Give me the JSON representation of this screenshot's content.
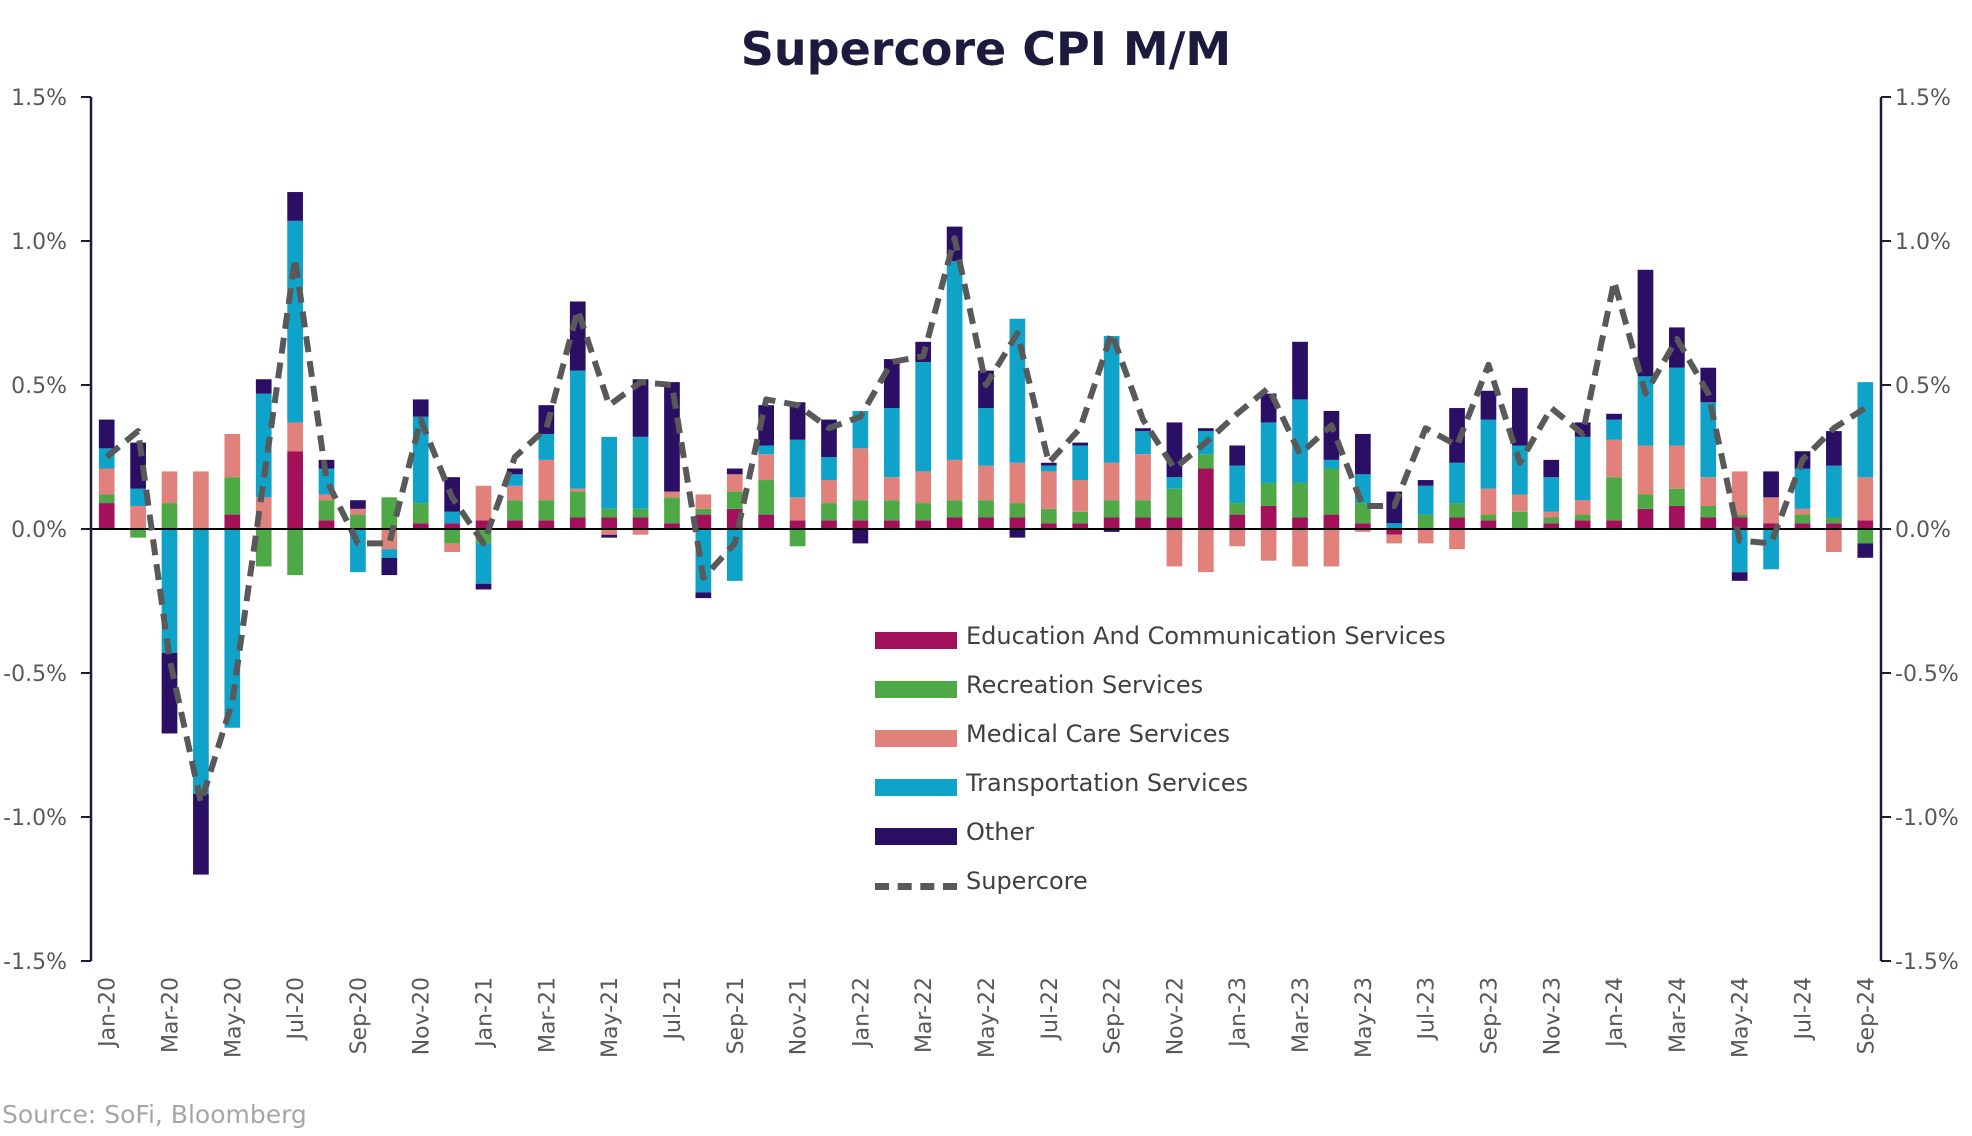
{
  "source_note": "Source: SoFi, Bloomberg",
  "chart_data": {
    "type": "bar",
    "stacked": true,
    "title": "Supercore CPI M/M",
    "ylim": [
      -1.5,
      1.5
    ],
    "y_ticks": [
      1.5,
      1.0,
      0.5,
      0.0,
      -0.5,
      -1.0,
      -1.5
    ],
    "y_tick_labels": [
      "1.5%",
      "1.0%",
      "0.5%",
      "0.0%",
      "-0.5%",
      "-1.0%",
      "-1.5%"
    ],
    "y_axis_right_mirror": true,
    "grid": false,
    "legend_position": "center-right",
    "x_tick_labels": [
      "Jan-20",
      "Mar-20",
      "May-20",
      "Jul-20",
      "Sep-20",
      "Nov-20",
      "Jan-21",
      "Mar-21",
      "May-21",
      "Jul-21",
      "Sep-21",
      "Nov-21",
      "Jan-22",
      "Mar-22",
      "May-22",
      "Jul-22",
      "Sep-22",
      "Nov-22",
      "Jan-23",
      "Mar-23",
      "May-23",
      "Jul-23",
      "Sep-23",
      "Nov-23",
      "Jan-24",
      "Mar-24",
      "May-24",
      "Jul-24",
      "Sep-24"
    ],
    "categories": [
      "Jan-20",
      "Feb-20",
      "Mar-20",
      "Apr-20",
      "May-20",
      "Jun-20",
      "Jul-20",
      "Aug-20",
      "Sep-20",
      "Oct-20",
      "Nov-20",
      "Dec-20",
      "Jan-21",
      "Feb-21",
      "Mar-21",
      "Apr-21",
      "May-21",
      "Jun-21",
      "Jul-21",
      "Aug-21",
      "Sep-21",
      "Oct-21",
      "Nov-21",
      "Dec-21",
      "Jan-22",
      "Feb-22",
      "Mar-22",
      "Apr-22",
      "May-22",
      "Jun-22",
      "Jul-22",
      "Aug-22",
      "Sep-22",
      "Oct-22",
      "Nov-22",
      "Dec-22",
      "Jan-23",
      "Feb-23",
      "Mar-23",
      "Apr-23",
      "May-23",
      "Jun-23",
      "Jul-23",
      "Aug-23",
      "Sep-23",
      "Oct-23",
      "Nov-23",
      "Dec-23",
      "Jan-24",
      "Feb-24",
      "Mar-24",
      "Apr-24",
      "May-24",
      "Jun-24",
      "Jul-24",
      "Aug-24",
      "Sep-24"
    ],
    "series": [
      {
        "name": "Education And Communication Services",
        "color": "#a3115b",
        "values": [
          0.09,
          0.0,
          0.0,
          0.0,
          0.05,
          0.0,
          0.27,
          0.03,
          0.0,
          0.0,
          0.02,
          0.02,
          0.03,
          0.03,
          0.03,
          0.04,
          0.04,
          0.04,
          0.02,
          0.05,
          0.07,
          0.05,
          0.03,
          0.03,
          0.03,
          0.03,
          0.03,
          0.04,
          0.04,
          0.04,
          0.02,
          0.02,
          0.04,
          0.04,
          0.04,
          0.21,
          0.05,
          0.08,
          0.04,
          0.05,
          0.02,
          -0.02,
          0.0,
          0.04,
          0.03,
          0.0,
          0.02,
          0.03,
          0.03,
          0.07,
          0.08,
          0.04,
          0.04,
          0.02,
          0.02,
          0.02,
          0.03
        ]
      },
      {
        "name": "Recreation Services",
        "color": "#4fa846",
        "values": [
          0.03,
          -0.03,
          0.09,
          0.0,
          0.13,
          -0.13,
          -0.16,
          0.07,
          0.05,
          0.11,
          0.07,
          -0.05,
          -0.05,
          0.07,
          0.07,
          0.09,
          0.03,
          0.03,
          0.09,
          0.02,
          0.06,
          0.12,
          -0.06,
          0.06,
          0.07,
          0.07,
          0.06,
          0.06,
          0.06,
          0.05,
          0.05,
          0.04,
          0.06,
          0.06,
          0.1,
          0.05,
          0.04,
          0.08,
          0.12,
          0.16,
          0.07,
          0.0,
          0.05,
          0.05,
          0.02,
          0.06,
          0.02,
          0.02,
          0.15,
          0.05,
          0.06,
          0.04,
          0.01,
          0.0,
          0.03,
          0.02,
          -0.05
        ]
      },
      {
        "name": "Medical Care Services",
        "color": "#e0827b",
        "values": [
          0.09,
          0.08,
          0.11,
          0.2,
          0.15,
          0.11,
          0.1,
          0.02,
          0.02,
          -0.07,
          0.0,
          -0.03,
          0.12,
          0.05,
          0.14,
          0.01,
          -0.02,
          -0.02,
          0.02,
          0.05,
          0.06,
          0.09,
          0.08,
          0.08,
          0.18,
          0.08,
          0.11,
          0.14,
          0.12,
          0.14,
          0.13,
          0.11,
          0.13,
          0.16,
          -0.13,
          -0.15,
          -0.06,
          -0.11,
          -0.13,
          -0.13,
          -0.01,
          -0.03,
          -0.05,
          -0.07,
          0.09,
          0.06,
          0.02,
          0.05,
          0.13,
          0.17,
          0.15,
          0.1,
          0.15,
          0.09,
          0.02,
          -0.08,
          0.15
        ]
      },
      {
        "name": "Transportation Services",
        "color": "#0fa3c9",
        "values": [
          0.07,
          0.06,
          -0.43,
          -0.92,
          -0.69,
          0.36,
          0.7,
          0.09,
          -0.15,
          -0.03,
          0.3,
          0.04,
          -0.14,
          0.04,
          0.09,
          0.41,
          0.25,
          0.25,
          0.0,
          -0.22,
          -0.18,
          0.03,
          0.2,
          0.08,
          0.13,
          0.24,
          0.38,
          0.69,
          0.2,
          0.5,
          0.02,
          0.12,
          0.44,
          0.08,
          0.04,
          0.08,
          0.13,
          0.21,
          0.29,
          0.03,
          0.1,
          0.02,
          0.1,
          0.14,
          0.24,
          0.17,
          0.12,
          0.22,
          0.07,
          0.24,
          0.27,
          0.26,
          -0.15,
          -0.14,
          0.14,
          0.18,
          0.33
        ]
      },
      {
        "name": "Other",
        "color": "#2b0f65",
        "values": [
          0.1,
          0.16,
          -0.28,
          -0.28,
          0.0,
          0.05,
          0.1,
          0.03,
          0.03,
          -0.06,
          0.06,
          0.12,
          -0.02,
          0.02,
          0.1,
          0.24,
          -0.01,
          0.2,
          0.38,
          -0.02,
          0.02,
          0.14,
          0.13,
          0.13,
          -0.05,
          0.17,
          0.07,
          0.12,
          0.13,
          -0.03,
          0.01,
          0.01,
          -0.01,
          0.01,
          0.19,
          0.01,
          0.07,
          0.1,
          0.2,
          0.17,
          0.14,
          0.11,
          0.02,
          0.19,
          0.1,
          0.2,
          0.06,
          0.05,
          0.02,
          0.37,
          0.14,
          0.12,
          -0.03,
          0.09,
          0.06,
          0.12,
          -0.05
        ]
      }
    ],
    "line_series": {
      "name": "Supercore",
      "style": "dashed",
      "color": "#595959",
      "values": [
        0.25,
        0.34,
        -0.45,
        -0.95,
        -0.6,
        0.17,
        0.94,
        0.17,
        -0.05,
        -0.05,
        0.38,
        0.11,
        -0.05,
        0.25,
        0.35,
        0.76,
        0.43,
        0.51,
        0.5,
        -0.17,
        -0.05,
        0.45,
        0.43,
        0.35,
        0.39,
        0.58,
        0.6,
        1.01,
        0.5,
        0.68,
        0.23,
        0.35,
        0.68,
        0.38,
        0.21,
        0.3,
        0.4,
        0.49,
        0.26,
        0.36,
        0.08,
        0.08,
        0.35,
        0.29,
        0.57,
        0.23,
        0.42,
        0.33,
        0.86,
        0.47,
        0.66,
        0.47,
        -0.04,
        -0.05,
        0.24,
        0.35,
        0.42
      ]
    }
  }
}
